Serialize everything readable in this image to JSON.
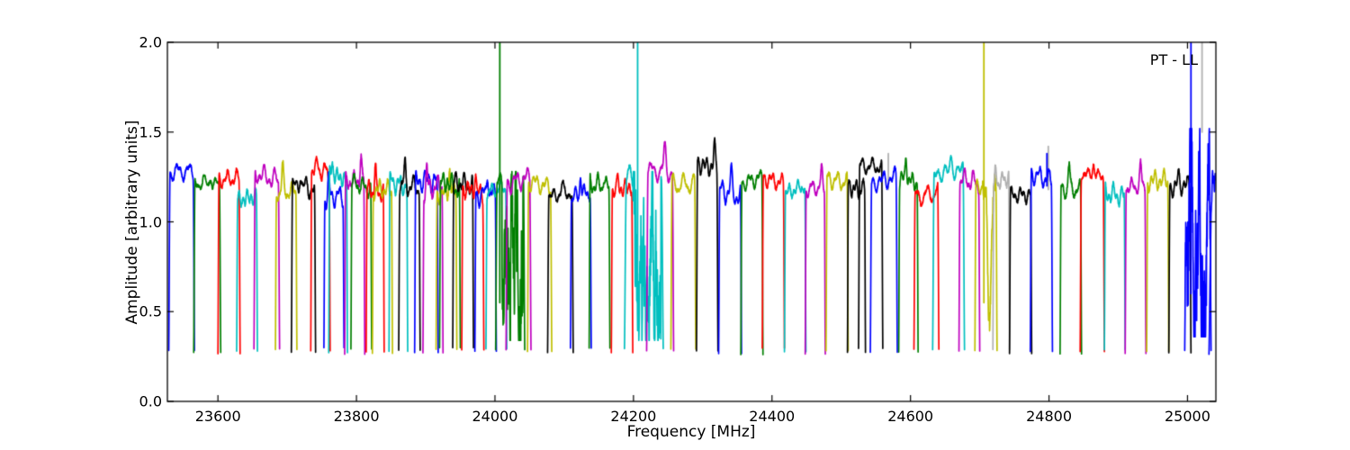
{
  "chart_data": {
    "type": "line",
    "title": "",
    "annotation": "PT - LL",
    "xlabel": "Frequency [MHz]",
    "ylabel": "Amplitude [arbitrary units]",
    "xlim": [
      23527,
      25041
    ],
    "ylim": [
      0.0,
      2.0
    ],
    "xticks": [
      23600,
      23800,
      24000,
      24200,
      24400,
      24600,
      24800,
      25000
    ],
    "xtick_labels": [
      "23600",
      "23800",
      "24000",
      "24200",
      "24400",
      "24600",
      "24800",
      "25000"
    ],
    "yticks": [
      0.0,
      0.5,
      1.0,
      1.5,
      2.0
    ],
    "ytick_labels": [
      "0.0",
      "0.5",
      "1.0",
      "1.5",
      "2.0"
    ],
    "grid": false,
    "legend_position": null,
    "baseline_amplitude": 0.28,
    "palette": {
      "b": "#0000ff",
      "g": "#007f00",
      "r": "#ff0000",
      "c": "#00bfbf",
      "m": "#bf00bf",
      "y": "#bfbf00",
      "k": "#000000",
      "gray": "#b0b0b0"
    },
    "segments": [
      {
        "c": "b",
        "f0": 23529,
        "f1": 23566,
        "p": 1.35
      },
      {
        "c": "g",
        "f0": 23565,
        "f1": 23604,
        "p": 1.28
      },
      {
        "c": "r",
        "f0": 23600,
        "f1": 23632,
        "p": 1.31
      },
      {
        "c": "c",
        "f0": 23627,
        "f1": 23657,
        "p": 1.2
      },
      {
        "c": "m",
        "f0": 23652,
        "f1": 23689,
        "p": 1.32
      },
      {
        "c": "y",
        "f0": 23683,
        "f1": 23714,
        "p": 1.24
      },
      {
        "c": "k",
        "f0": 23706,
        "f1": 23741,
        "p": 1.26
      },
      {
        "c": "r",
        "f0": 23734,
        "f1": 23762,
        "p": 1.36
      },
      {
        "c": "b",
        "f0": 23753,
        "f1": 23782,
        "p": 1.21
      },
      {
        "c": "c",
        "f0": 23760,
        "f1": 23787,
        "p": 1.32
      },
      {
        "c": "m",
        "f0": 23783,
        "f1": 23812,
        "p": 1.3
      },
      {
        "c": "g",
        "f0": 23792,
        "f1": 23822,
        "p": 1.27
      },
      {
        "c": "r",
        "f0": 23814,
        "f1": 23840,
        "p": 1.24
      },
      {
        "c": "y",
        "f0": 23823,
        "f1": 23852,
        "p": 1.25
      },
      {
        "c": "c",
        "f0": 23847,
        "f1": 23874,
        "p": 1.28
      },
      {
        "c": "k",
        "f0": 23861,
        "f1": 23892,
        "p": 1.27
      },
      {
        "c": "b",
        "f0": 23884,
        "f1": 23918,
        "p": 1.3
      },
      {
        "c": "m",
        "f0": 23896,
        "f1": 23925,
        "p": 1.26
      },
      {
        "c": "y",
        "f0": 23915,
        "f1": 23945,
        "p": 1.23
      },
      {
        "c": "g",
        "f0": 23920,
        "f1": 23950,
        "p": 1.27
      },
      {
        "c": "k",
        "f0": 23939,
        "f1": 23969,
        "p": 1.28
      },
      {
        "c": "r",
        "f0": 23952,
        "f1": 23984,
        "p": 1.24
      },
      {
        "c": "b",
        "f0": 23971,
        "f1": 24002,
        "p": 1.22
      },
      {
        "c": "c",
        "f0": 23987,
        "f1": 24017,
        "p": 1.25
      },
      {
        "c": "g",
        "f0": 24001,
        "f1": 24043,
        "p": 1.28,
        "noise": "deep",
        "spikes": [
          {
            "f": 24007,
            "a": 2.5,
            "b": 0.55,
            "c": "g"
          }
        ]
      },
      {
        "c": "m",
        "f0": 24016,
        "f1": 24052,
        "p": 1.3
      },
      {
        "c": "y",
        "f0": 24047,
        "f1": 24082,
        "p": 1.28
      },
      {
        "c": "k",
        "f0": 24076,
        "f1": 24113,
        "p": 1.22
      },
      {
        "c": "b",
        "f0": 24109,
        "f1": 24139,
        "p": 1.22
      },
      {
        "c": "g",
        "f0": 24136,
        "f1": 24166,
        "p": 1.27
      },
      {
        "c": "r",
        "f0": 24168,
        "f1": 24199,
        "p": 1.25
      },
      {
        "c": "c",
        "f0": 24187,
        "f1": 24243,
        "p": 1.28,
        "noise": "deep",
        "spikes": [
          {
            "f": 24206,
            "a": 2.5,
            "b": 0.55,
            "c": "c"
          }
        ]
      },
      {
        "c": "m",
        "f0": 24219,
        "f1": 24258,
        "p": 1.35
      },
      {
        "c": "y",
        "f0": 24254,
        "f1": 24290,
        "p": 1.28
      },
      {
        "c": "k",
        "f0": 24291,
        "f1": 24322,
        "p": 1.38
      },
      {
        "c": "b",
        "f0": 24323,
        "f1": 24356,
        "p": 1.23
      },
      {
        "c": "g",
        "f0": 24355,
        "f1": 24387,
        "p": 1.3
      },
      {
        "c": "r",
        "f0": 24386,
        "f1": 24418,
        "p": 1.3
      },
      {
        "c": "c",
        "f0": 24418,
        "f1": 24449,
        "p": 1.25
      },
      {
        "c": "m",
        "f0": 24448,
        "f1": 24477,
        "p": 1.26
      },
      {
        "c": "y",
        "f0": 24478,
        "f1": 24510,
        "p": 1.3
      },
      {
        "c": "k",
        "f0": 24509,
        "f1": 24535,
        "p": 1.25
      },
      {
        "c": "k",
        "f0": 24525,
        "f1": 24560,
        "p": 1.38
      },
      {
        "c": "b",
        "f0": 24542,
        "f1": 24581,
        "p": 1.3,
        "spikes": [
          {
            "f": 24568,
            "a": 1.38,
            "b": 1.18,
            "c": "gray"
          }
        ]
      },
      {
        "c": "g",
        "f0": 24583,
        "f1": 24611,
        "p": 1.3
      },
      {
        "c": "r",
        "f0": 24605,
        "f1": 24641,
        "p": 1.22
      },
      {
        "c": "c",
        "f0": 24632,
        "f1": 24678,
        "p": 1.35
      },
      {
        "c": "m",
        "f0": 24670,
        "f1": 24700,
        "p": 1.3
      },
      {
        "c": "y",
        "f0": 24693,
        "f1": 24725,
        "p": 1.26,
        "noise": "dip",
        "spikes": [
          {
            "f": 24706,
            "a": 2.5,
            "b": 0.55,
            "c": "y"
          }
        ]
      },
      {
        "c": "gray",
        "f0": 24719,
        "f1": 24743,
        "p": 1.3
      },
      {
        "c": "k",
        "f0": 24743,
        "f1": 24775,
        "p": 1.22
      },
      {
        "c": "b",
        "f0": 24773,
        "f1": 24805,
        "p": 1.32,
        "spikes": [
          {
            "f": 24799,
            "a": 1.42,
            "b": 1.18,
            "c": "gray"
          },
          {
            "f": 24797,
            "a": 1.38,
            "b": 1.2,
            "c": "b"
          }
        ]
      },
      {
        "c": "g",
        "f0": 24816,
        "f1": 24847,
        "p": 1.25
      },
      {
        "c": "r",
        "f0": 24845,
        "f1": 24880,
        "p": 1.33
      },
      {
        "c": "c",
        "f0": 24880,
        "f1": 24910,
        "p": 1.22
      },
      {
        "c": "m",
        "f0": 24910,
        "f1": 24940,
        "p": 1.27
      },
      {
        "c": "y",
        "f0": 24941,
        "f1": 24973,
        "p": 1.3
      },
      {
        "c": "k",
        "f0": 24973,
        "f1": 25005,
        "p": 1.27
      },
      {
        "c": "b",
        "f0": 24996,
        "f1": 25034,
        "p": 1.3,
        "noise": "wild",
        "spikes": [
          {
            "f": 25005,
            "a": 2.5,
            "b": 0.6,
            "c": "b"
          },
          {
            "f": 25021,
            "a": 2.5,
            "b": 1.5,
            "c": "gray"
          }
        ]
      },
      {
        "c": "b",
        "f0": 25031,
        "f1": 25041,
        "p": 1.3,
        "shape": "rise"
      }
    ]
  }
}
